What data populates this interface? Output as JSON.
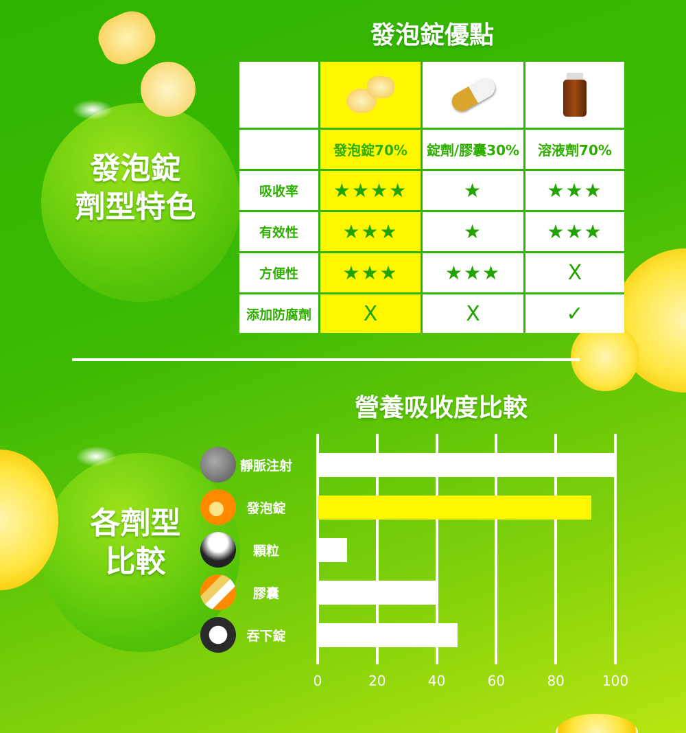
{
  "top_section": {
    "side_title_line1": "發泡錠",
    "side_title_line2": "劑型特色",
    "title": "發泡錠優點",
    "columns": [
      "發泡錠70%",
      "錠劑/膠囊30%",
      "溶液劑70%"
    ],
    "column_images": [
      "effervescent-tablet",
      "capsule",
      "medicine-bottle"
    ],
    "rows": [
      {
        "label": "吸收率",
        "values": [
          "★★★★",
          "★",
          "★★★"
        ]
      },
      {
        "label": "有效性",
        "values": [
          "★★★",
          "★",
          "★★★"
        ]
      },
      {
        "label": "方便性",
        "values": [
          "★★★",
          "★★★",
          "X"
        ]
      },
      {
        "label": "添加防腐劑",
        "values": [
          "X",
          "X",
          "✓"
        ]
      }
    ],
    "highlight_color": "#fff700"
  },
  "bottom_section": {
    "side_title_line1": "各劑型",
    "side_title_line2": "比較"
  },
  "chart_data": {
    "type": "bar",
    "orientation": "horizontal",
    "title": "營養吸收度比較",
    "categories": [
      "靜脈注射",
      "發泡錠",
      "顆粒",
      "膠囊",
      "吞下錠"
    ],
    "values": [
      100,
      92,
      10,
      40,
      47
    ],
    "highlight_category": "發泡錠",
    "colors": {
      "default": "#ffffff",
      "highlight": "#fff700"
    },
    "xlim": [
      0,
      100
    ],
    "xticks": [
      "0",
      "20",
      "40",
      "60",
      "80",
      "100"
    ],
    "grid": true
  }
}
